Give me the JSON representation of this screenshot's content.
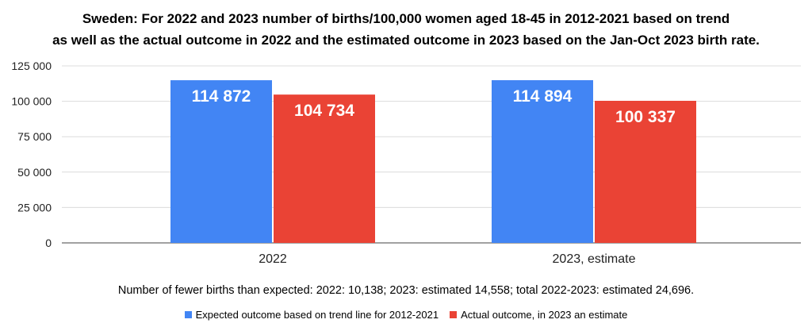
{
  "chart_data": {
    "type": "bar",
    "title_lines": [
      "Sweden: For 2022 and 2023 number of births/100,000 women aged 18-45 in 2012-2021 based on trend",
      "as well as the actual outcome in 2022 and the estimated outcome in 2023 based on the Jan-Oct 2023 birth rate."
    ],
    "categories": [
      "2022",
      "2023, estimate"
    ],
    "series": [
      {
        "name": "Expected outcome based on trend line for 2012-2021",
        "values": [
          114872,
          114894
        ],
        "labels": [
          "114 872",
          "114 894"
        ],
        "color": "#4285f4"
      },
      {
        "name": "Actual outcome, in 2023 an estimate",
        "values": [
          104734,
          100337
        ],
        "labels": [
          "104 734",
          "100 337"
        ],
        "color": "#ea4335"
      }
    ],
    "ylim": [
      0,
      125000
    ],
    "yticks": [
      0,
      25000,
      50000,
      75000,
      100000,
      125000
    ],
    "ytick_labels": [
      "0",
      "25 000",
      "50 000",
      "75 000",
      "100 000",
      "125 000"
    ],
    "grid": true,
    "legend_position": "bottom",
    "annotation": "Number of fewer births than expected: 2022: 10,138; 2023: estimated 14,558; total 2022-2023: estimated 24,696."
  }
}
